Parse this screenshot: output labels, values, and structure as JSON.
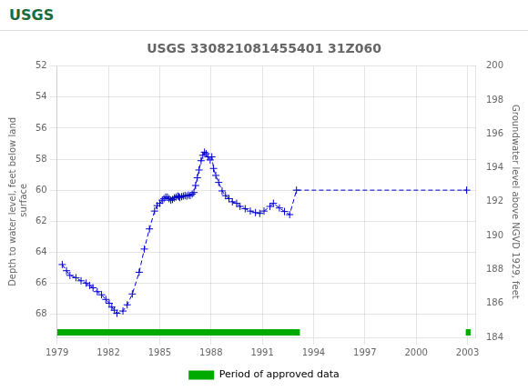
{
  "chart_data": {
    "type": "line",
    "title": "USGS 330821081455401 31Z060",
    "annotations": [
      "USGS"
    ],
    "y_label": "Depth to water level, feet below land\n surface",
    "y2_label": "Groundwater level above NGVD 1929, feet",
    "xlim": [
      1979,
      2003.5
    ],
    "xticks": [
      1979,
      1982,
      1985,
      1988,
      1991,
      1994,
      1997,
      2000,
      2003
    ],
    "ylim": [
      69.5,
      52
    ],
    "yticks": [
      52,
      54,
      56,
      58,
      60,
      62,
      64,
      66,
      68
    ],
    "y2lim": [
      184,
      200
    ],
    "y2ticks": [
      200,
      198,
      196,
      194,
      192,
      190,
      188,
      186,
      184
    ],
    "grid": true,
    "legend": "bottom",
    "x": [
      1979.3,
      1979.55,
      1979.75,
      1980.1,
      1980.4,
      1980.7,
      1980.9,
      1981.1,
      1981.35,
      1981.6,
      1981.85,
      1982.05,
      1982.2,
      1982.35,
      1982.5,
      1982.85,
      1983.1,
      1983.4,
      1983.8,
      1984.1,
      1984.4,
      1984.7,
      1984.85,
      1985.0,
      1985.15,
      1985.25,
      1985.35,
      1985.45,
      1985.55,
      1985.65,
      1985.75,
      1985.85,
      1985.95,
      1986.05,
      1986.12,
      1986.18,
      1986.28,
      1986.38,
      1986.48,
      1986.58,
      1986.68,
      1986.78,
      1986.9,
      1987.0,
      1987.1,
      1987.2,
      1987.3,
      1987.42,
      1987.52,
      1987.62,
      1987.72,
      1987.82,
      1987.95,
      1988.05,
      1988.15,
      1988.28,
      1988.45,
      1988.65,
      1988.85,
      1989.05,
      1989.25,
      1989.5,
      1989.7,
      1990.0,
      1990.3,
      1990.6,
      1990.85,
      1991.1,
      1991.45,
      1991.65,
      1992.0,
      1992.3,
      1992.6,
      1993.0,
      2002.95
    ],
    "series": [
      {
        "color": "#0000cc",
        "marker": "plus",
        "line_style": "dashed",
        "axis": "y",
        "values": [
          64.8,
          65.2,
          65.5,
          65.65,
          65.85,
          66.0,
          66.15,
          66.3,
          66.55,
          66.75,
          67.05,
          67.3,
          67.55,
          67.75,
          67.95,
          67.8,
          67.4,
          66.7,
          65.3,
          63.8,
          62.5,
          61.35,
          61.0,
          60.85,
          60.65,
          60.55,
          60.45,
          60.45,
          60.55,
          60.65,
          60.6,
          60.5,
          60.45,
          60.38,
          60.42,
          60.48,
          60.42,
          60.38,
          60.35,
          60.38,
          60.32,
          60.35,
          60.25,
          60.15,
          59.7,
          59.2,
          58.7,
          58.1,
          57.75,
          57.55,
          57.65,
          57.85,
          58.05,
          57.85,
          58.6,
          59.05,
          59.5,
          60.05,
          60.35,
          60.55,
          60.75,
          60.85,
          61.05,
          61.2,
          61.35,
          61.45,
          61.5,
          61.35,
          61.05,
          60.85,
          61.15,
          61.38,
          61.58,
          60.0,
          60.0
        ]
      }
    ],
    "approved_periods": {
      "name": "Period of approved data",
      "color": "#00aa00",
      "periods": [
        [
          1979.0,
          1993.2
        ],
        [
          2002.9,
          2003.18
        ]
      ]
    }
  }
}
